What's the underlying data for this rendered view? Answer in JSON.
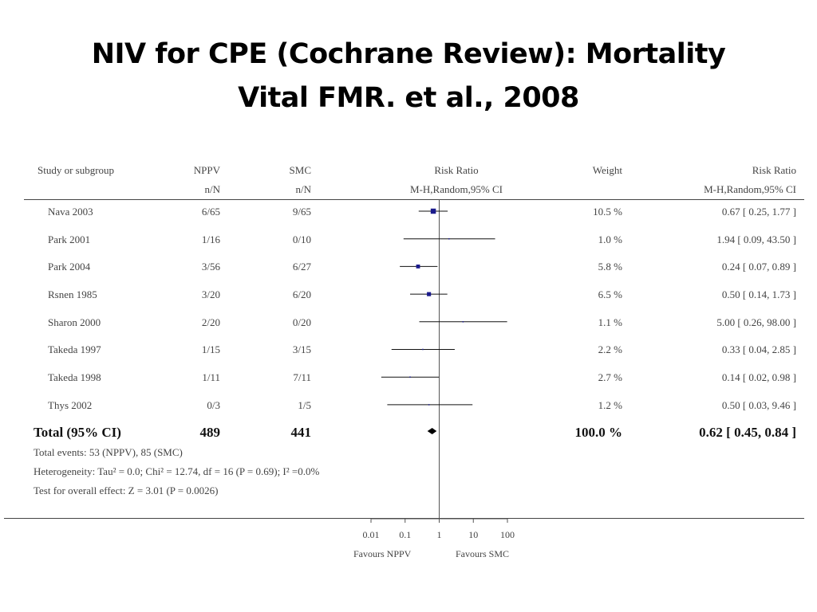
{
  "slide": {
    "title_line1": "NIV for CPE  (Cochrane Review): Mortality",
    "title_line2": "Vital FMR. et al., 2008"
  },
  "headers": {
    "study": "Study or subgroup",
    "group1": "NPPV",
    "group1_sub": "n/N",
    "group2": "SMC",
    "group2_sub": "n/N",
    "plot": "Risk Ratio",
    "plot_sub": "M-H,Random,95% CI",
    "weight": "Weight",
    "rr": "Risk Ratio",
    "rr_sub": "M-H,Random,95% CI"
  },
  "chart_data": {
    "type": "forest",
    "xscale": "log",
    "xlim": [
      0.01,
      100
    ],
    "xticks": [
      "0.01",
      "0.1",
      "1",
      "10",
      "100"
    ],
    "xlabel_left": "Favours NPPV",
    "xlabel_right": "Favours SMC",
    "marker_color": "#1a1a8c",
    "studies": [
      {
        "study": "Nava 2003",
        "nppv": "6/65",
        "smc": "9/65",
        "rr": 0.67,
        "lo": 0.25,
        "hi": 1.77,
        "weight": "10.5 %",
        "ci_text": "0.67 [ 0.25, 1.77 ]"
      },
      {
        "study": "Park 2001",
        "nppv": "1/16",
        "smc": "0/10",
        "rr": 1.94,
        "lo": 0.09,
        "hi": 43.5,
        "weight": "1.0 %",
        "ci_text": "1.94 [ 0.09, 43.50 ]"
      },
      {
        "study": "Park 2004",
        "nppv": "3/56",
        "smc": "6/27",
        "rr": 0.24,
        "lo": 0.07,
        "hi": 0.89,
        "weight": "5.8 %",
        "ci_text": "0.24 [ 0.07, 0.89 ]"
      },
      {
        "study": "Rsnen 1985",
        "nppv": "3/20",
        "smc": "6/20",
        "rr": 0.5,
        "lo": 0.14,
        "hi": 1.73,
        "weight": "6.5 %",
        "ci_text": "0.50 [ 0.14, 1.73 ]"
      },
      {
        "study": "Sharon 2000",
        "nppv": "2/20",
        "smc": "0/20",
        "rr": 5.0,
        "lo": 0.26,
        "hi": 98.0,
        "weight": "1.1 %",
        "ci_text": "5.00 [ 0.26, 98.00 ]"
      },
      {
        "study": "Takeda 1997",
        "nppv": "1/15",
        "smc": "3/15",
        "rr": 0.33,
        "lo": 0.04,
        "hi": 2.85,
        "weight": "2.2 %",
        "ci_text": "0.33 [ 0.04, 2.85 ]"
      },
      {
        "study": "Takeda 1998",
        "nppv": "1/11",
        "smc": "7/11",
        "rr": 0.14,
        "lo": 0.02,
        "hi": 0.98,
        "weight": "2.7 %",
        "ci_text": "0.14 [ 0.02, 0.98 ]"
      },
      {
        "study": "Thys 2002",
        "nppv": "0/3",
        "smc": "1/5",
        "rr": 0.5,
        "lo": 0.03,
        "hi": 9.46,
        "weight": "1.2 %",
        "ci_text": "0.50 [ 0.03, 9.46 ]"
      }
    ],
    "total": {
      "label": "Total (95% CI)",
      "nppv": "489",
      "smc": "441",
      "rr": 0.62,
      "lo": 0.45,
      "hi": 0.84,
      "weight": "100.0 %",
      "ci_text": "0.62 [ 0.45, 0.84 ]"
    },
    "notes": [
      "Total events: 53 (NPPV), 85 (SMC)",
      "Heterogeneity: Tau² = 0.0; Chi² = 12.74, df = 16 (P = 0.69); I² =0.0%",
      "Test for overall effect: Z = 3.01 (P = 0.0026)"
    ]
  }
}
